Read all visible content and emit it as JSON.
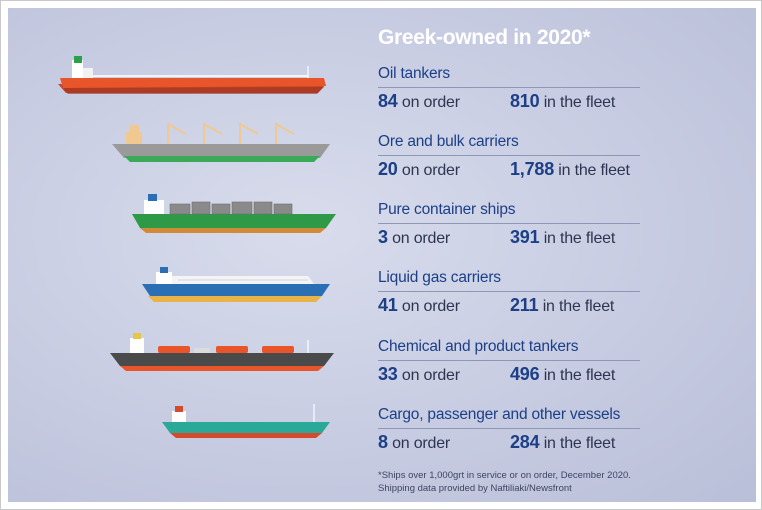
{
  "title": "Greek-owned in 2020*",
  "on_order_label": "on order",
  "in_fleet_label": "in the fleet",
  "categories": [
    {
      "name": "Oil tankers",
      "on_order": "84",
      "fleet": "810",
      "icon": "oil-tanker-icon"
    },
    {
      "name": "Ore and bulk carriers",
      "on_order": "20",
      "fleet": "1,788",
      "icon": "bulk-carrier-icon"
    },
    {
      "name": "Pure container ships",
      "on_order": "3",
      "fleet": "391",
      "icon": "container-ship-icon"
    },
    {
      "name": "Liquid gas carriers",
      "on_order": "41",
      "fleet": "211",
      "icon": "gas-carrier-icon"
    },
    {
      "name": "Chemical and product tankers",
      "on_order": "33",
      "fleet": "496",
      "icon": "chemical-tanker-icon"
    },
    {
      "name": "Cargo, passenger and other vessels",
      "on_order": "8",
      "fleet": "284",
      "icon": "cargo-vessel-icon"
    }
  ],
  "footnote": {
    "line1": "*Ships over 1,000grt in service or on order, December 2020.",
    "line2": "Shipping data provided by Naftiliaki/Newsfront"
  },
  "colors": {
    "title": "#ffffff",
    "heading": "#1c3f86",
    "oil_tanker_hull": "#e8552a",
    "bulk_hull": "#9a9a9a",
    "container_hull": "#2e9a48",
    "gas_hull": "#2a6fb4",
    "chemical_hull": "#4a4a4a",
    "cargo_hull": "#2aa898"
  }
}
